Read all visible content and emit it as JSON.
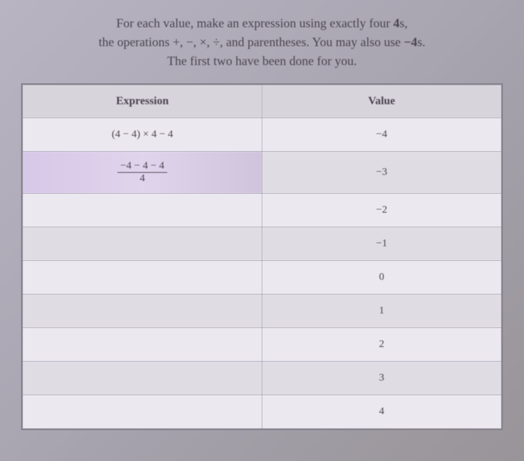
{
  "instructions": {
    "line1_pre": "For each value, make an expression using exactly four ",
    "line1_num": "4",
    "line1_post": "s,",
    "line2_pre": "the operations ",
    "line2_ops": "+, −, ×, ÷",
    "line2_mid": ", and parentheses. You may also use ",
    "line2_neg": "−4",
    "line2_post": "s.",
    "line3": "The first two have been done for you."
  },
  "table": {
    "headers": {
      "expression": "Expression",
      "value": "Value"
    },
    "rows": [
      {
        "expression": "(4 − 4) × 4 − 4",
        "value": "−4",
        "type": "plain"
      },
      {
        "expression_num": "−4 − 4 − 4",
        "expression_den": "4",
        "value": "−3",
        "type": "fraction"
      },
      {
        "expression": "",
        "value": "−2",
        "type": "plain"
      },
      {
        "expression": "",
        "value": "−1",
        "type": "plain"
      },
      {
        "expression": "",
        "value": "0",
        "type": "plain"
      },
      {
        "expression": "",
        "value": "1",
        "type": "plain"
      },
      {
        "expression": "",
        "value": "2",
        "type": "plain"
      },
      {
        "expression": "",
        "value": "3",
        "type": "plain"
      },
      {
        "expression": "",
        "value": "4",
        "type": "plain"
      }
    ]
  },
  "styling": {
    "body_bg_start": "#b8b4c2",
    "body_bg_end": "#989498",
    "text_color": "#4a4550",
    "border_color": "#a09ca8",
    "header_bg": "#d8d4dc",
    "row_even_bg": "#e0dce4",
    "row_odd_bg": "#ece8f0",
    "instruction_fontsize": 18,
    "header_fontsize": 16,
    "cell_fontsize": 15
  }
}
